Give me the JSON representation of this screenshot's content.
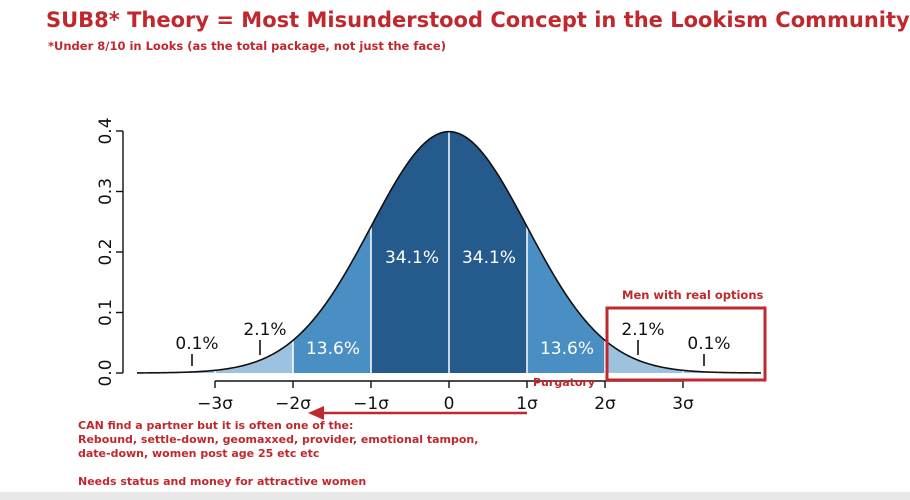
{
  "title": "SUB8* Theory = Most Misunderstood Concept in the Lookism Community",
  "subtitle": "*Under 8/10 in Looks (as the total package, not just the face)",
  "annotations": {
    "men_with_options": "Men with real options",
    "purgatory": "Purgatory",
    "partner_note": [
      "CAN find a partner but it is often one of the:",
      "Rebound, settle-down, geomaxxed, provider, emotional tampon,",
      "date-down, women post age 25 etc etc"
    ],
    "status_note": "Needs status and money for attractive women"
  },
  "colors": {
    "accent_red": "#c0282d",
    "dark_blue": "#245a8c",
    "mid_blue": "#4a8fc4",
    "light_blue": "#9cc2e0"
  },
  "chart_data": {
    "type": "area",
    "distribution": "standard normal",
    "xlim": [
      -4,
      4
    ],
    "ylim": [
      0,
      0.4
    ],
    "xticks": [
      -3,
      -2,
      -1,
      0,
      1,
      2,
      3
    ],
    "xtick_labels": [
      "−3σ",
      "−2σ",
      "−1σ",
      "0",
      "1σ",
      "2σ",
      "3σ"
    ],
    "yticks": [
      0.0,
      0.1,
      0.2,
      0.3,
      0.4
    ],
    "ytick_labels": [
      "0.0",
      "0.1",
      "0.2",
      "0.3",
      "0.4"
    ],
    "regions": [
      {
        "from": -4,
        "to": -3,
        "label": "0.1%",
        "shade": "light"
      },
      {
        "from": -3,
        "to": -2,
        "label": "2.1%",
        "shade": "light"
      },
      {
        "from": -2,
        "to": -1,
        "label": "13.6%",
        "shade": "mid"
      },
      {
        "from": -1,
        "to": 0,
        "label": "34.1%",
        "shade": "dark"
      },
      {
        "from": 0,
        "to": 1,
        "label": "34.1%",
        "shade": "dark"
      },
      {
        "from": 1,
        "to": 2,
        "label": "13.6%",
        "shade": "mid"
      },
      {
        "from": 2,
        "to": 3,
        "label": "2.1%",
        "shade": "light"
      },
      {
        "from": 3,
        "to": 4,
        "label": "0.1%",
        "shade": "light"
      }
    ]
  }
}
